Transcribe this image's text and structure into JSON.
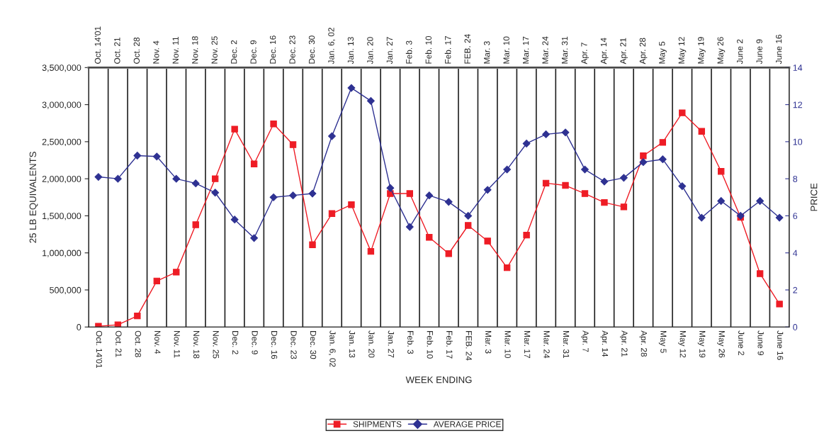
{
  "chart_data": {
    "type": "line",
    "xlabel": "WEEK ENDING",
    "ylabel": "25 LB EQUIVALENTS",
    "y2label": "PRICE",
    "categories": [
      "Oct. 14'01",
      "Oct. 21",
      "Oct. 28",
      "Nov. 4",
      "Nov. 11",
      "Nov. 18",
      "Nov. 25",
      "Dec. 2",
      "Dec. 9",
      "Dec. 16",
      "Dec. 23",
      "Dec. 30",
      "Jan. 6, 02",
      "Jan. 13",
      "Jan. 20",
      "Jan. 27",
      "Feb. 3",
      "Feb. 10",
      "Feb. 17",
      "FEB. 24",
      "Mar. 3",
      "Mar. 10",
      "Mar. 17",
      "Mar. 24",
      "Mar. 31",
      "Apr. 7",
      "Apr. 14",
      "Apr. 21",
      "Apr. 28",
      "May 5",
      "May 12",
      "May 19",
      "May 26",
      "June 2",
      "June 9",
      "June 16"
    ],
    "series": [
      {
        "name": "SHIPMENTS",
        "color": "#ee1c25",
        "marker": "square",
        "values": [
          10000,
          30000,
          150000,
          620000,
          740000,
          1380000,
          2000000,
          2670000,
          2200000,
          2740000,
          2460000,
          1110000,
          1530000,
          1650000,
          1020000,
          1800000,
          1800000,
          1210000,
          990000,
          1370000,
          1160000,
          800000,
          1240000,
          1940000,
          1910000,
          1800000,
          1680000,
          1620000,
          2310000,
          2490000,
          2890000,
          2640000,
          2100000,
          1480000,
          720000,
          310000
        ]
      },
      {
        "name": "AVERAGE PRICE",
        "color": "#2e3192",
        "marker": "diamond",
        "axis": "y2",
        "values": [
          8.1,
          8.0,
          9.25,
          9.2,
          8.0,
          7.75,
          7.25,
          5.8,
          4.8,
          7.0,
          7.1,
          7.2,
          10.3,
          12.9,
          12.2,
          7.5,
          5.4,
          7.1,
          6.75,
          6.0,
          7.4,
          8.5,
          9.9,
          10.4,
          10.5,
          8.5,
          7.85,
          8.05,
          8.9,
          9.05,
          7.6,
          5.9,
          6.8,
          6.0,
          6.8,
          5.9
        ]
      }
    ],
    "ylim": [
      0,
      3500000
    ],
    "yticks": [
      {
        "value": 0,
        "label": "0"
      },
      {
        "value": 500000,
        "label": "500,000"
      },
      {
        "value": 1000000,
        "label": "1,000,000"
      },
      {
        "value": 1500000,
        "label": "1,500,000"
      },
      {
        "value": 2000000,
        "label": "2,000,000"
      },
      {
        "value": 2500000,
        "label": "2,500,000"
      },
      {
        "value": 3000000,
        "label": "3,000,000"
      },
      {
        "value": 3500000,
        "label": "3,500,000"
      }
    ],
    "y2lim": [
      0,
      14
    ],
    "y2ticks": [
      0,
      2,
      4,
      6,
      8,
      10,
      12,
      14
    ],
    "grid": "x",
    "legend": "bottom",
    "line_style": "solid"
  }
}
